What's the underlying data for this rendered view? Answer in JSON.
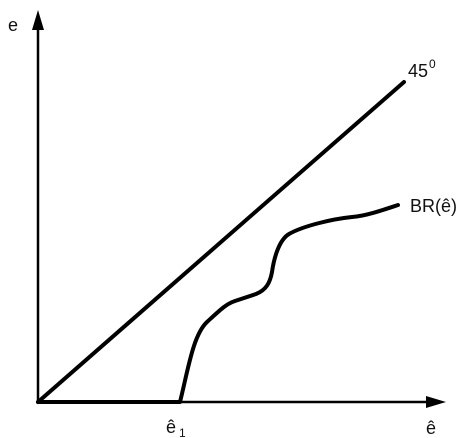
{
  "diagram": {
    "y_axis_label": "e",
    "x_axis_label": "ê",
    "line_45_label": "45",
    "line_45_superscript": "0",
    "curve_label": "BR(ê)",
    "x_tick_label_base": "ê",
    "x_tick_label_sub": "1",
    "colors": {
      "background": "#ffffff",
      "ink": "#000000"
    }
  }
}
